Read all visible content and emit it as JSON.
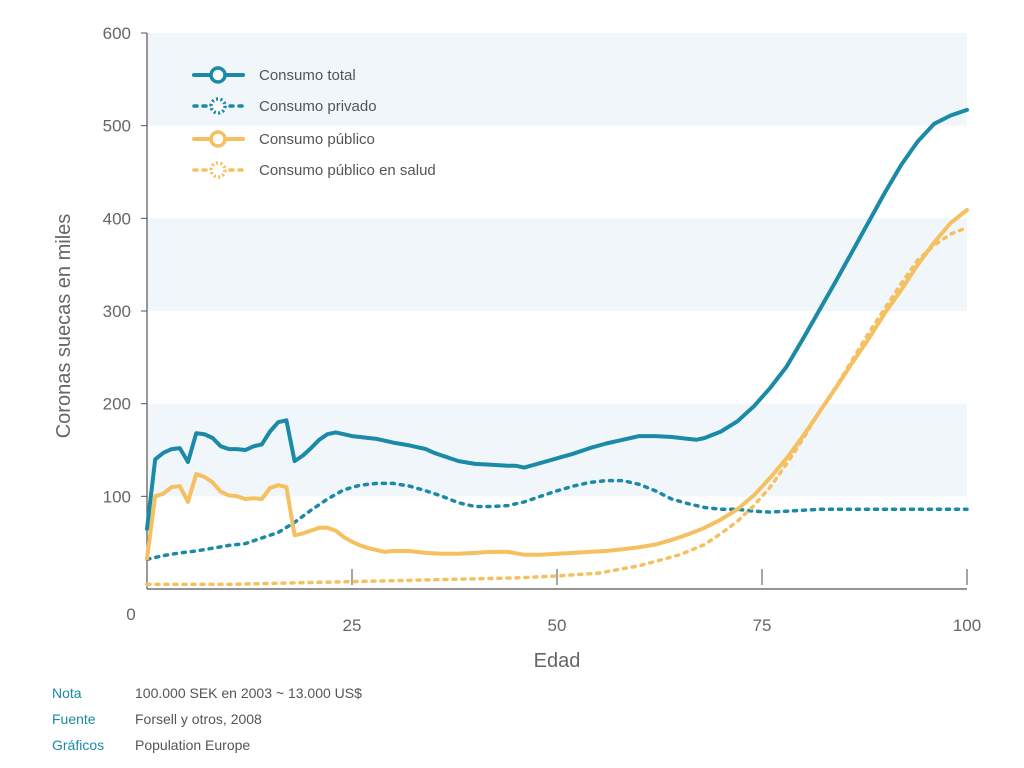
{
  "chart_data": {
    "type": "line",
    "xlabel": "Edad",
    "ylabel": "Coronas suecas en miles",
    "xlim": [
      0,
      100
    ],
    "ylim": [
      0,
      600
    ],
    "x_ticks": [
      "25",
      "50",
      "75",
      "100"
    ],
    "x_tick_values": [
      25,
      50,
      75,
      100
    ],
    "origin_label": "0",
    "y_ticks": [
      "100",
      "200",
      "300",
      "400",
      "500",
      "600"
    ],
    "y_tick_values": [
      100,
      200,
      300,
      400,
      500,
      600
    ],
    "grid": "alternating horizontal bands",
    "legend_position": "top-left",
    "colors": {
      "total": "#1a8aa6",
      "private": "#1a8aa6",
      "public": "#f5c060",
      "health": "#f5c060",
      "band": "#f1f6fa",
      "axis": "#555555"
    },
    "series": [
      {
        "name": "Consumo total",
        "style": "solid",
        "color": "#1a8aa6",
        "x": [
          0,
          1,
          2,
          3,
          4,
          5,
          6,
          7,
          8,
          9,
          10,
          11,
          12,
          13,
          14,
          15,
          16,
          17,
          18,
          19,
          20,
          21,
          22,
          23,
          24,
          25,
          26,
          27,
          28,
          29,
          30,
          32,
          34,
          35,
          36,
          38,
          40,
          42,
          44,
          45,
          46,
          48,
          50,
          52,
          54,
          56,
          58,
          60,
          62,
          64,
          66,
          67,
          68,
          70,
          72,
          74,
          76,
          78,
          80,
          82,
          84,
          86,
          88,
          90,
          92,
          94,
          96,
          98,
          100
        ],
        "y": [
          65,
          140,
          147,
          151,
          152,
          137,
          168,
          167,
          163,
          154,
          151,
          151,
          150,
          154,
          156,
          170,
          180,
          182,
          138,
          144,
          152,
          161,
          167,
          169,
          167,
          165,
          164,
          163,
          162,
          160,
          158,
          155,
          151,
          147,
          144,
          138,
          135,
          134,
          133,
          133,
          131,
          136,
          141,
          146,
          152,
          157,
          161,
          165,
          165,
          164,
          162,
          161,
          163,
          170,
          181,
          197,
          217,
          240,
          270,
          301,
          332,
          364,
          396,
          428,
          458,
          483,
          502,
          511,
          517
        ]
      },
      {
        "name": "Consumo privado",
        "style": "dotted",
        "color": "#1a8aa6",
        "x": [
          0,
          2,
          4,
          6,
          8,
          10,
          12,
          14,
          16,
          18,
          20,
          22,
          24,
          26,
          28,
          30,
          32,
          34,
          36,
          38,
          40,
          42,
          44,
          46,
          48,
          50,
          52,
          54,
          56,
          58,
          60,
          62,
          64,
          66,
          68,
          70,
          72,
          74,
          76,
          78,
          80,
          82,
          84,
          86,
          88,
          90,
          92,
          94,
          96,
          98,
          100
        ],
        "y": [
          32,
          36,
          39,
          41,
          44,
          47,
          49,
          55,
          61,
          72,
          85,
          97,
          107,
          112,
          114,
          114,
          111,
          106,
          100,
          93,
          89,
          89,
          90,
          94,
          100,
          106,
          111,
          115,
          117,
          117,
          113,
          106,
          97,
          92,
          88,
          86,
          86,
          84,
          83,
          84,
          85,
          86,
          86,
          86,
          86,
          86,
          86,
          86,
          86,
          86,
          86
        ]
      },
      {
        "name": "Consumo público",
        "style": "solid",
        "color": "#f5c060",
        "x": [
          0,
          1,
          2,
          3,
          4,
          5,
          6,
          7,
          8,
          9,
          10,
          11,
          12,
          13,
          14,
          15,
          16,
          17,
          18,
          19,
          20,
          21,
          22,
          23,
          24,
          25,
          26,
          27,
          28,
          29,
          30,
          32,
          34,
          36,
          38,
          40,
          42,
          44,
          46,
          48,
          50,
          52,
          54,
          56,
          58,
          60,
          62,
          64,
          66,
          68,
          70,
          72,
          74,
          76,
          78,
          80,
          82,
          84,
          86,
          88,
          90,
          92,
          94,
          96,
          98,
          100
        ],
        "y": [
          33,
          100,
          103,
          110,
          111,
          94,
          124,
          121,
          115,
          105,
          101,
          100,
          97,
          98,
          97,
          109,
          112,
          110,
          58,
          60,
          63,
          66,
          66,
          63,
          56,
          51,
          47,
          44,
          42,
          40,
          41,
          41,
          39,
          38,
          38,
          39,
          40,
          40,
          37,
          37,
          38,
          39,
          40,
          41,
          43,
          45,
          48,
          53,
          59,
          66,
          75,
          86,
          101,
          120,
          141,
          165,
          191,
          217,
          244,
          270,
          298,
          323,
          350,
          374,
          395,
          409
        ]
      },
      {
        "name": "Consumo público en salud",
        "style": "dotted",
        "color": "#f5c060",
        "x": [
          0,
          5,
          10,
          15,
          20,
          25,
          30,
          35,
          40,
          45,
          50,
          55,
          60,
          65,
          68,
          70,
          72,
          74,
          76,
          78,
          80,
          82,
          84,
          86,
          88,
          90,
          92,
          94,
          96,
          98,
          100
        ],
        "y": [
          5,
          5,
          5,
          6,
          7,
          8,
          9,
          10,
          11,
          12,
          14,
          17,
          25,
          37,
          48,
          60,
          73,
          90,
          110,
          135,
          162,
          191,
          218,
          247,
          276,
          303,
          330,
          355,
          371,
          383,
          390
        ]
      }
    ]
  },
  "notes": [
    {
      "key": "Nota",
      "value": "100.000 SEK en 2003 ~ 13.000 US$"
    },
    {
      "key": "Fuente",
      "value": "Forsell y otros, 2008"
    },
    {
      "key": "Gráficos",
      "value": "Population Europe"
    }
  ]
}
